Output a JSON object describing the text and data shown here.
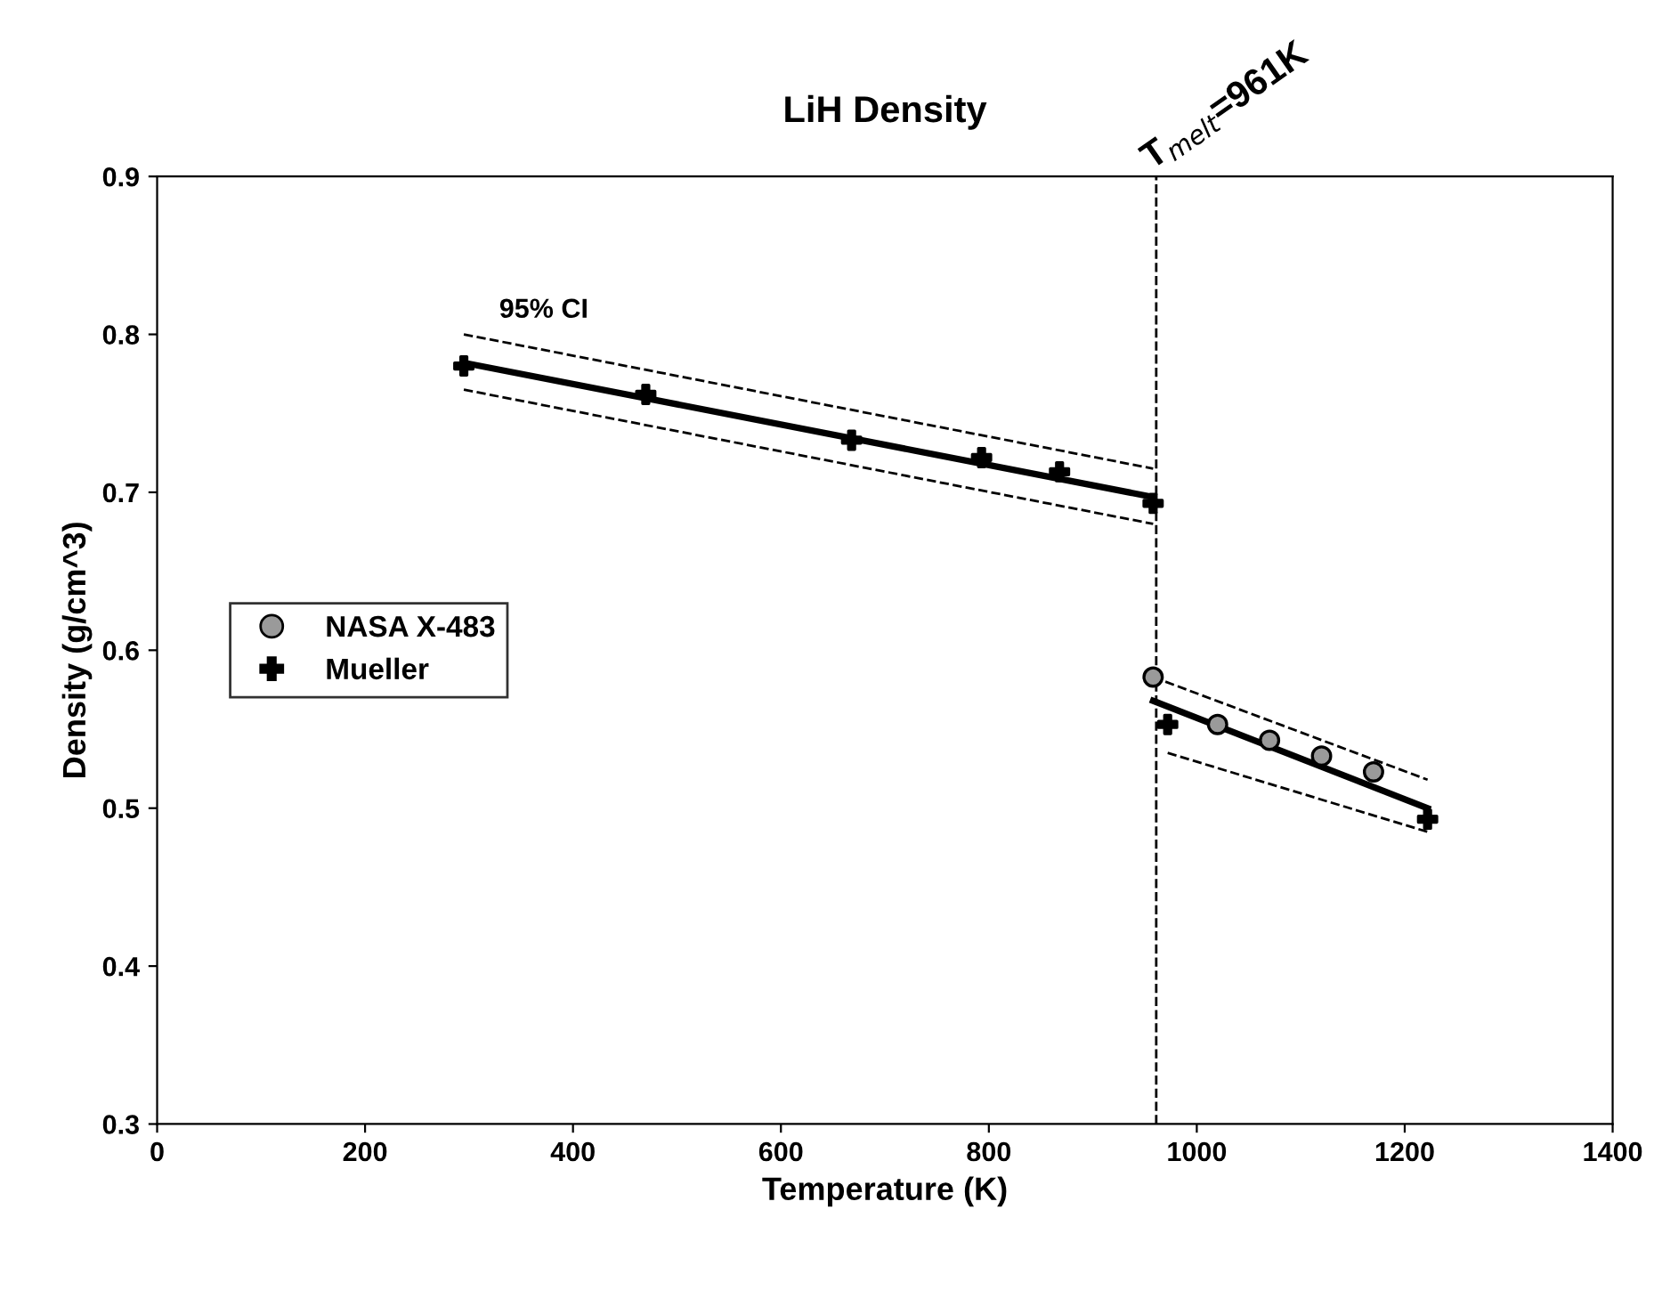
{
  "chart_data": {
    "type": "scatter",
    "title": "LiH Density",
    "xlabel": "Temperature (K)",
    "ylabel": "Density (g/cm^3)",
    "xlim": [
      0,
      1400
    ],
    "xticks": [
      0,
      200,
      400,
      600,
      800,
      1000,
      1200,
      1400
    ],
    "ylim": [
      0.3,
      0.9
    ],
    "yticks": [
      0.3,
      0.4,
      0.5,
      0.6,
      0.7,
      0.8,
      0.9
    ],
    "grid": false,
    "legend": "left",
    "series": [
      {
        "name": "NASA X-483",
        "marker": "circle",
        "color": "#9a9a9a",
        "x": [
          958,
          1020,
          1070,
          1120,
          1170
        ],
        "values": [
          0.583,
          0.553,
          0.543,
          0.533,
          0.523
        ]
      },
      {
        "name": "Mueller",
        "marker": "cross",
        "color": "#000000",
        "x": [
          295,
          470,
          668,
          793,
          868,
          958,
          972,
          1222
        ],
        "values": [
          0.78,
          0.762,
          0.733,
          0.722,
          0.713,
          0.693,
          0.553,
          0.493
        ]
      },
      {
        "type": "line",
        "marker": "none",
        "line_style": "solid",
        "color": "#000000",
        "x": [
          295,
          958
        ],
        "values": [
          0.782,
          0.697
        ]
      },
      {
        "type": "line",
        "marker": "none",
        "line_style": "solid",
        "color": "#000000",
        "x": [
          958,
          1222
        ],
        "values": [
          0.568,
          0.5
        ]
      },
      {
        "type": "line",
        "marker": "none",
        "line_style": "dashed",
        "color": "#000000",
        "x": [
          295,
          958
        ],
        "values": [
          0.8,
          0.715
        ]
      },
      {
        "type": "line",
        "marker": "none",
        "line_style": "dashed",
        "color": "#000000",
        "x": [
          295,
          958
        ],
        "values": [
          0.765,
          0.68
        ]
      },
      {
        "type": "line",
        "marker": "none",
        "line_style": "dashed",
        "color": "#000000",
        "x": [
          958,
          1222
        ],
        "values": [
          0.583,
          0.518
        ]
      },
      {
        "type": "line",
        "marker": "none",
        "line_style": "dashed",
        "color": "#000000",
        "x": [
          972,
          1222
        ],
        "values": [
          0.535,
          0.485
        ]
      }
    ],
    "ref_lines": [
      {
        "axis": "x",
        "value": 961,
        "label": "T$_{melt}$=961K",
        "line_style": "dashed",
        "color": "#000000"
      }
    ],
    "annotations": [
      "95% CI"
    ]
  }
}
